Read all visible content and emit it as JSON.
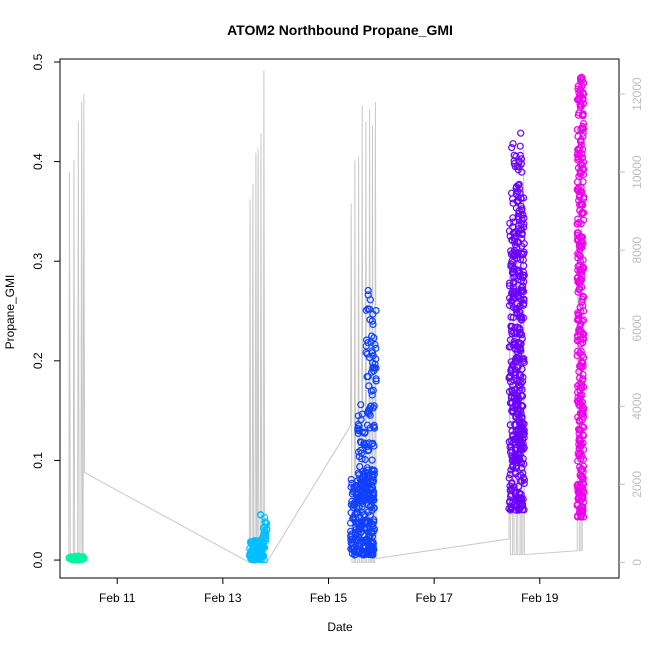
{
  "chart_data": {
    "type": "scatter",
    "title": "ATOM2 Northbound Propane_GMI",
    "xlabel": "Date",
    "ylabel": "Propane_GMI",
    "x_range": [
      "2016-02-09T22:00",
      "2016-02-20T12:00"
    ],
    "ylim": [
      -0.018,
      0.503
    ],
    "y_ticks": [
      0.0,
      0.1,
      0.2,
      0.3,
      0.4,
      0.5
    ],
    "y_tick_labels": [
      "0.0",
      "0.1",
      "0.2",
      "0.3",
      "0.4",
      "0.5"
    ],
    "x_ticks": [
      "2016-02-11",
      "2016-02-13",
      "2016-02-15",
      "2016-02-17",
      "2016-02-19"
    ],
    "x_tick_labels": [
      "Feb 11",
      "Feb 13",
      "Feb 15",
      "Feb 17",
      "Feb 19"
    ],
    "right_axis": {
      "ylim": [
        -400,
        12900
      ],
      "ticks": [
        0,
        2000,
        4000,
        6000,
        8000,
        10000,
        12000
      ],
      "tick_labels": [
        "0",
        "2000",
        "4000",
        "6000",
        "8000",
        "10000",
        "12000"
      ],
      "color": "#bdbdbd"
    },
    "grid": false,
    "legend": "none",
    "marker": "open-circle",
    "series": [
      {
        "color": "#00f5a0",
        "clusters": [
          {
            "t_start": "2016-02-10T02:00",
            "t_end": "2016-02-10T09:00",
            "y_min": 0.0,
            "y_max": 0.004,
            "n": 50
          }
        ]
      },
      {
        "color": "#00bfff",
        "clusters": [
          {
            "t_start": "2016-02-13T12:00",
            "t_end": "2016-02-13T19:00",
            "y_min": 0.0,
            "y_max": 0.02,
            "n": 90
          },
          {
            "t_start": "2016-02-13T17:00",
            "t_end": "2016-02-13T20:00",
            "y_min": 0.01,
            "y_max": 0.046,
            "n": 25
          }
        ]
      },
      {
        "color": "#1040ff",
        "clusters": [
          {
            "t_start": "2016-02-15T10:00",
            "t_end": "2016-02-15T21:00",
            "y_min": 0.005,
            "y_max": 0.09,
            "n": 220
          },
          {
            "t_start": "2016-02-15T13:00",
            "t_end": "2016-02-15T21:00",
            "y_min": 0.06,
            "y_max": 0.16,
            "n": 90
          },
          {
            "t_start": "2016-02-15T17:00",
            "t_end": "2016-02-15T22:00",
            "y_min": 0.15,
            "y_max": 0.275,
            "n": 45
          }
        ]
      },
      {
        "color": "#6a00ff",
        "clusters": [
          {
            "t_start": "2016-02-18T10:00",
            "t_end": "2016-02-18T17:00",
            "y_min": 0.05,
            "y_max": 0.36,
            "n": 260
          },
          {
            "t_start": "2016-02-18T11:00",
            "t_end": "2016-02-18T16:00",
            "y_min": 0.1,
            "y_max": 0.42,
            "n": 140
          },
          {
            "t_start": "2016-02-18T14:00",
            "t_end": "2016-02-18T17:00",
            "y_min": 0.06,
            "y_max": 0.43,
            "n": 60
          }
        ]
      },
      {
        "color": "#ee00ee",
        "clusters": [
          {
            "t_start": "2016-02-19T17:00",
            "t_end": "2016-02-19T20:00",
            "y_min": 0.043,
            "y_max": 0.485,
            "n": 340
          }
        ]
      }
    ],
    "secondary_line": {
      "color": "#c8c8c8",
      "points": [
        [
          "2016-02-10T02:00",
          0
        ],
        [
          "2016-02-10T02:20",
          10000
        ],
        [
          "2016-02-10T02:40",
          0
        ],
        [
          "2016-02-10T04:00",
          0
        ],
        [
          "2016-02-10T04:20",
          10300
        ],
        [
          "2016-02-10T04:40",
          0
        ],
        [
          "2016-02-10T06:00",
          0
        ],
        [
          "2016-02-10T06:20",
          11300
        ],
        [
          "2016-02-10T06:40",
          0
        ],
        [
          "2016-02-10T07:30",
          0
        ],
        [
          "2016-02-10T07:50",
          11800
        ],
        [
          "2016-02-10T08:10",
          0
        ],
        [
          "2016-02-10T08:30",
          0
        ],
        [
          "2016-02-10T08:50",
          12000
        ],
        [
          "2016-02-10T09:10",
          2300
        ],
        [
          "2016-02-13T12:00",
          0
        ],
        [
          "2016-02-13T12:20",
          9300
        ],
        [
          "2016-02-13T12:40",
          0
        ],
        [
          "2016-02-13T13:20",
          0
        ],
        [
          "2016-02-13T13:40",
          9700
        ],
        [
          "2016-02-13T14:00",
          0
        ],
        [
          "2016-02-13T14:40",
          0
        ],
        [
          "2016-02-13T15:00",
          10500
        ],
        [
          "2016-02-13T15:20",
          0
        ],
        [
          "2016-02-13T15:40",
          0
        ],
        [
          "2016-02-13T16:00",
          10600
        ],
        [
          "2016-02-13T16:20",
          0
        ],
        [
          "2016-02-13T17:00",
          0
        ],
        [
          "2016-02-13T17:20",
          11000
        ],
        [
          "2016-02-13T17:40",
          0
        ],
        [
          "2016-02-13T18:20",
          0
        ],
        [
          "2016-02-13T18:40",
          12600
        ],
        [
          "2016-02-13T19:00",
          0
        ],
        [
          "2016-02-13T20:00",
          0
        ],
        [
          "2016-02-15T10:00",
          3500
        ],
        [
          "2016-02-15T10:20",
          9200
        ],
        [
          "2016-02-15T10:40",
          0
        ],
        [
          "2016-02-15T11:40",
          0
        ],
        [
          "2016-02-15T12:00",
          10300
        ],
        [
          "2016-02-15T12:20",
          0
        ],
        [
          "2016-02-15T13:20",
          0
        ],
        [
          "2016-02-15T13:40",
          10400
        ],
        [
          "2016-02-15T14:00",
          0
        ],
        [
          "2016-02-15T15:00",
          0
        ],
        [
          "2016-02-15T15:20",
          11700
        ],
        [
          "2016-02-15T15:40",
          0
        ],
        [
          "2016-02-15T16:40",
          0
        ],
        [
          "2016-02-15T17:00",
          11300
        ],
        [
          "2016-02-15T17:20",
          0
        ],
        [
          "2016-02-15T18:20",
          0
        ],
        [
          "2016-02-15T18:40",
          11600
        ],
        [
          "2016-02-15T19:00",
          0
        ],
        [
          "2016-02-15T19:40",
          0
        ],
        [
          "2016-02-15T20:00",
          11200
        ],
        [
          "2016-02-15T20:20",
          0
        ],
        [
          "2016-02-15T21:00",
          0
        ],
        [
          "2016-02-15T21:20",
          11800
        ],
        [
          "2016-02-15T21:40",
          100
        ],
        [
          "2016-02-18T10:00",
          600
        ],
        [
          "2016-02-18T10:20",
          7900
        ],
        [
          "2016-02-18T10:40",
          200
        ],
        [
          "2016-02-18T11:40",
          200
        ],
        [
          "2016-02-18T12:00",
          8600
        ],
        [
          "2016-02-18T12:20",
          200
        ],
        [
          "2016-02-18T13:20",
          200
        ],
        [
          "2016-02-18T13:40",
          9500
        ],
        [
          "2016-02-18T14:00",
          200
        ],
        [
          "2016-02-18T15:00",
          200
        ],
        [
          "2016-02-18T15:20",
          9700
        ],
        [
          "2016-02-18T15:40",
          200
        ],
        [
          "2016-02-18T16:20",
          200
        ],
        [
          "2016-02-18T16:40",
          10600
        ],
        [
          "2016-02-18T17:00",
          200
        ],
        [
          "2016-02-19T17:00",
          300
        ],
        [
          "2016-02-19T17:30",
          10500
        ],
        [
          "2016-02-19T18:00",
          300
        ],
        [
          "2016-02-19T18:40",
          300
        ],
        [
          "2016-02-19T19:00",
          11000
        ],
        [
          "2016-02-19T19:20",
          300
        ]
      ]
    }
  }
}
